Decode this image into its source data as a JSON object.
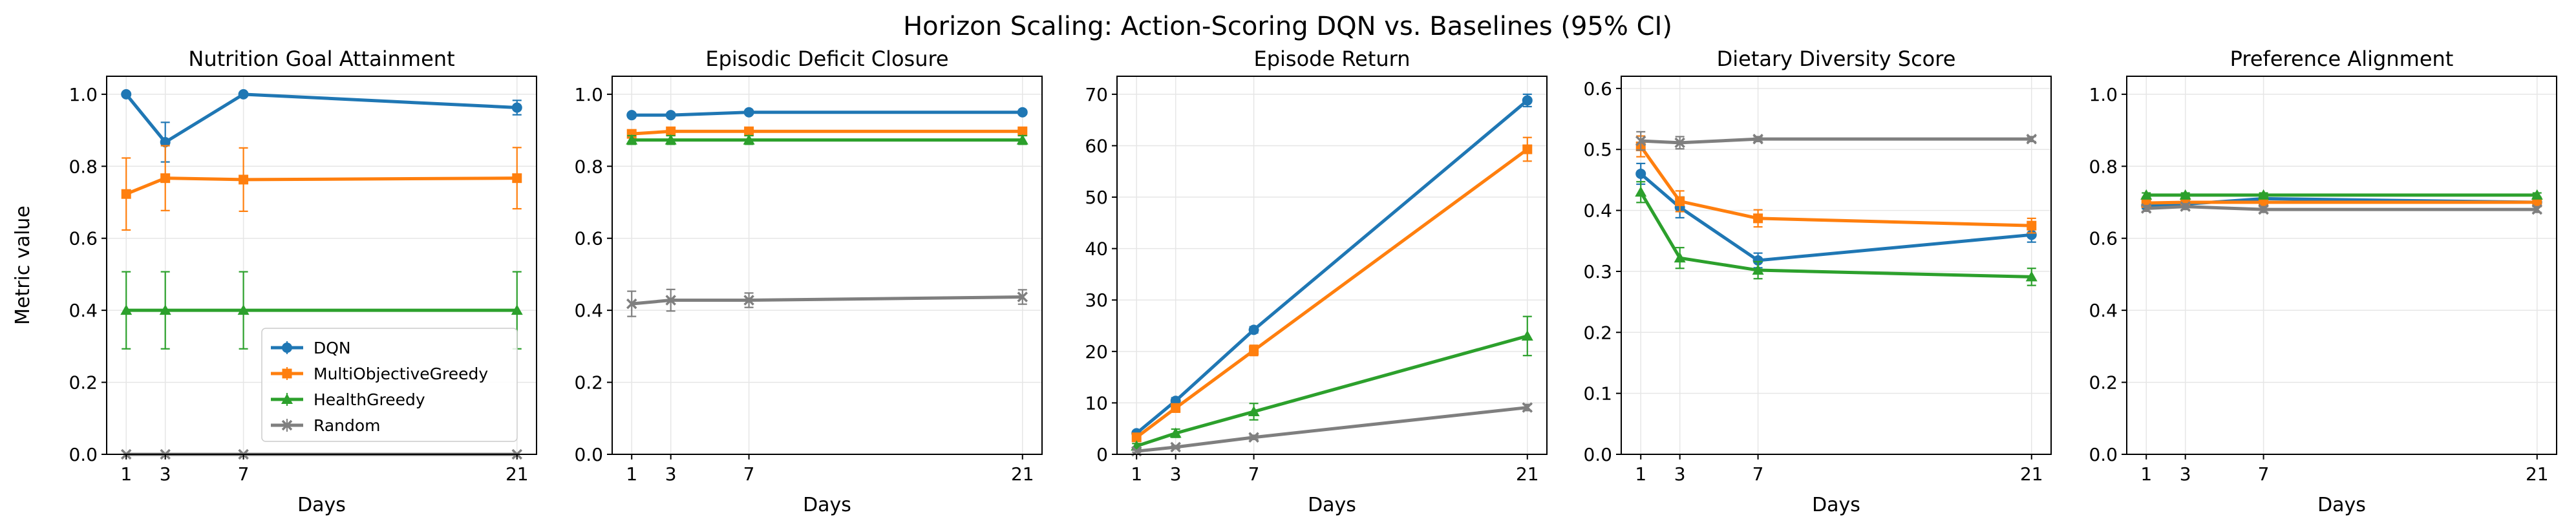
{
  "figure_title": "Horizon Scaling: Action-Scoring DQN vs. Baselines (95% CI)",
  "chart_data": [
    {
      "type": "line",
      "title": "Nutrition Goal Attainment",
      "xlabel": "Days",
      "ylabel": "Metric value",
      "x": [
        1,
        3,
        7,
        21
      ],
      "xticks": [
        "1",
        "3",
        "7",
        "21"
      ],
      "xlim": [
        0,
        22
      ],
      "ylim": [
        0,
        1.05
      ],
      "yticks": [
        "0.0",
        "0.2",
        "0.4",
        "0.6",
        "0.8",
        "1.0"
      ],
      "ytick_values": [
        0,
        0.2,
        0.4,
        0.6,
        0.8,
        1.0
      ],
      "grid": true,
      "legend": "lower right",
      "series": [
        {
          "name": "DQN",
          "values": [
            1.0,
            0.867,
            1.0,
            0.963
          ],
          "err": [
            0,
            0.055,
            0,
            0.02
          ]
        },
        {
          "name": "MultiObjectiveGreedy",
          "values": [
            0.723,
            0.767,
            0.763,
            0.767
          ],
          "err": [
            0.1,
            0.09,
            0.088,
            0.085
          ]
        },
        {
          "name": "HealthGreedy",
          "values": [
            0.4,
            0.4,
            0.4,
            0.4
          ],
          "err": [
            0.107,
            0.107,
            0.107,
            0.107
          ]
        },
        {
          "name": "Random",
          "values": [
            0,
            0,
            0,
            0
          ],
          "err": [
            0,
            0,
            0,
            0
          ]
        }
      ]
    },
    {
      "type": "line",
      "title": "Episodic Deficit Closure",
      "xlabel": "Days",
      "ylabel": "",
      "x": [
        1,
        3,
        7,
        21
      ],
      "xticks": [
        "1",
        "3",
        "7",
        "21"
      ],
      "xlim": [
        0,
        22
      ],
      "ylim": [
        0,
        1.05
      ],
      "yticks": [
        "0.0",
        "0.2",
        "0.4",
        "0.6",
        "0.8",
        "1.0"
      ],
      "ytick_values": [
        0,
        0.2,
        0.4,
        0.6,
        0.8,
        1.0
      ],
      "grid": true,
      "series": [
        {
          "name": "DQN",
          "values": [
            0.942,
            0.942,
            0.95,
            0.95
          ],
          "err": [
            0.005,
            0.005,
            0.005,
            0.005
          ]
        },
        {
          "name": "MultiObjectiveGreedy",
          "values": [
            0.89,
            0.897,
            0.897,
            0.897
          ],
          "err": [
            0.008,
            0.008,
            0.008,
            0.008
          ]
        },
        {
          "name": "HealthGreedy",
          "values": [
            0.873,
            0.873,
            0.873,
            0.873
          ],
          "err": [
            0.012,
            0.012,
            0.012,
            0.012
          ]
        },
        {
          "name": "Random",
          "values": [
            0.418,
            0.428,
            0.428,
            0.437
          ],
          "err": [
            0.035,
            0.03,
            0.02,
            0.02
          ]
        }
      ]
    },
    {
      "type": "line",
      "title": "Episode Return",
      "xlabel": "Days",
      "ylabel": "",
      "x": [
        1,
        3,
        7,
        21
      ],
      "xticks": [
        "1",
        "3",
        "7",
        "21"
      ],
      "xlim": [
        0,
        22
      ],
      "ylim": [
        0,
        73.5
      ],
      "yticks": [
        "0",
        "10",
        "20",
        "30",
        "40",
        "50",
        "60",
        "70"
      ],
      "ytick_values": [
        0,
        10,
        20,
        30,
        40,
        50,
        60,
        70
      ],
      "grid": true,
      "series": [
        {
          "name": "DQN",
          "values": [
            4.1,
            10.4,
            24.2,
            68.8
          ],
          "err": [
            0.4,
            0.6,
            0.6,
            1.2
          ]
        },
        {
          "name": "MultiObjectiveGreedy",
          "values": [
            3.3,
            9.0,
            20.2,
            59.3
          ],
          "err": [
            0.5,
            0.8,
            1.0,
            2.3
          ]
        },
        {
          "name": "HealthGreedy",
          "values": [
            1.6,
            4.1,
            8.3,
            23.0
          ],
          "err": [
            0.5,
            0.8,
            1.6,
            3.8
          ]
        },
        {
          "name": "Random",
          "values": [
            0.6,
            1.4,
            3.3,
            9.1
          ],
          "err": [
            0.2,
            0.3,
            0.4,
            0.6
          ]
        }
      ]
    },
    {
      "type": "line",
      "title": "Dietary Diversity Score",
      "xlabel": "Days",
      "ylabel": "",
      "x": [
        1,
        3,
        7,
        21
      ],
      "xticks": [
        "1",
        "3",
        "7",
        "21"
      ],
      "xlim": [
        0,
        22
      ],
      "ylim": [
        0,
        0.62
      ],
      "yticks": [
        "0.0",
        "0.1",
        "0.2",
        "0.3",
        "0.4",
        "0.5",
        "0.6"
      ],
      "ytick_values": [
        0,
        0.1,
        0.2,
        0.3,
        0.4,
        0.5,
        0.6
      ],
      "grid": true,
      "series": [
        {
          "name": "DQN",
          "values": [
            0.46,
            0.405,
            0.318,
            0.36
          ],
          "err": [
            0.017,
            0.017,
            0.012,
            0.012
          ]
        },
        {
          "name": "MultiObjectiveGreedy",
          "values": [
            0.505,
            0.415,
            0.387,
            0.375
          ],
          "err": [
            0.017,
            0.017,
            0.014,
            0.012
          ]
        },
        {
          "name": "HealthGreedy",
          "values": [
            0.43,
            0.322,
            0.302,
            0.291
          ],
          "err": [
            0.017,
            0.017,
            0.014,
            0.014
          ]
        },
        {
          "name": "Random",
          "values": [
            0.514,
            0.511,
            0.517,
            0.517
          ],
          "err": [
            0.015,
            0.01,
            0.004,
            0.004
          ]
        }
      ]
    },
    {
      "type": "line",
      "title": "Preference Alignment",
      "xlabel": "Days",
      "ylabel": "",
      "x": [
        1,
        3,
        7,
        21
      ],
      "xticks": [
        "1",
        "3",
        "7",
        "21"
      ],
      "xlim": [
        0,
        22
      ],
      "ylim": [
        0,
        1.05
      ],
      "yticks": [
        "0.0",
        "0.2",
        "0.4",
        "0.6",
        "0.8",
        "1.0"
      ],
      "ytick_values": [
        0,
        0.2,
        0.4,
        0.6,
        0.8,
        1.0
      ],
      "grid": true,
      "series": [
        {
          "name": "DQN",
          "values": [
            0.69,
            0.695,
            0.71,
            0.7
          ],
          "err": [
            0.008,
            0.008,
            0.008,
            0.008
          ]
        },
        {
          "name": "MultiObjectiveGreedy",
          "values": [
            0.698,
            0.7,
            0.7,
            0.7
          ],
          "err": [
            0.008,
            0.008,
            0.008,
            0.008
          ]
        },
        {
          "name": "HealthGreedy",
          "values": [
            0.72,
            0.72,
            0.72,
            0.72
          ],
          "err": [
            0.006,
            0.006,
            0.006,
            0.006
          ]
        },
        {
          "name": "Random",
          "values": [
            0.683,
            0.688,
            0.68,
            0.68
          ],
          "err": [
            0.008,
            0.008,
            0.008,
            0.008
          ]
        }
      ]
    }
  ],
  "series_styles": [
    {
      "color": "#1f77b4",
      "marker": "circle"
    },
    {
      "color": "#ff7f0e",
      "marker": "square"
    },
    {
      "color": "#2ca02c",
      "marker": "triangle"
    },
    {
      "color": "#7f7f7f",
      "marker": "x"
    }
  ],
  "axis_color": "#000000",
  "grid_color": "#e6e6e6"
}
